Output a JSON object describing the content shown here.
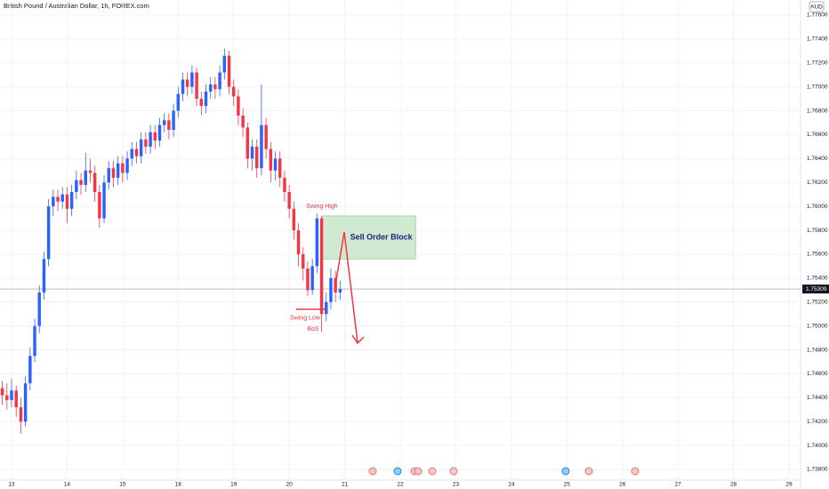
{
  "chart_data": {
    "type": "candlestick",
    "title": "British Pound / Australian Dollar, 1h, FOREX.com",
    "currency": "AUD",
    "up_color": "#2962ff",
    "down_color": "#f23645",
    "open": [
      1.7448,
      1.7442,
      1.7438,
      1.7446,
      1.7432,
      1.742,
      1.7452,
      1.7475,
      1.75,
      1.7528,
      1.7556,
      1.76,
      1.7608,
      1.7604,
      1.761,
      1.7598,
      1.7612,
      1.7622,
      1.7618,
      1.763,
      1.7628,
      1.7612,
      1.759,
      1.762,
      1.7632,
      1.7624,
      1.7636,
      1.7628,
      1.764,
      1.7648,
      1.7642,
      1.7656,
      1.765,
      1.7662,
      1.7655,
      1.7668,
      1.7672,
      1.7664,
      1.768,
      1.7694,
      1.7706,
      1.77,
      1.7712,
      1.769,
      1.7684,
      1.7696,
      1.7702,
      1.7698,
      1.7712,
      1.7726,
      1.77,
      1.7692,
      1.7676,
      1.7666,
      1.764,
      1.765,
      1.7632,
      1.7668,
      1.7648,
      1.763,
      1.764,
      1.7624,
      1.7612,
      1.7598,
      1.758,
      1.756,
      1.7548,
      1.753,
      1.755,
      1.759,
      1.751,
      1.752,
      1.754,
      1.7528
    ],
    "high": [
      1.7454,
      1.7452,
      1.7456,
      1.745,
      1.744,
      1.7458,
      1.7482,
      1.7506,
      1.7534,
      1.7562,
      1.7606,
      1.7614,
      1.7614,
      1.7616,
      1.7616,
      1.7618,
      1.763,
      1.7628,
      1.7645,
      1.764,
      1.7634,
      1.7618,
      1.7626,
      1.7638,
      1.7638,
      1.7642,
      1.7642,
      1.7646,
      1.7654,
      1.7654,
      1.7662,
      1.7662,
      1.7668,
      1.7668,
      1.7674,
      1.7678,
      1.7678,
      1.7686,
      1.77,
      1.7712,
      1.7712,
      1.7718,
      1.7716,
      1.7696,
      1.7702,
      1.7708,
      1.7708,
      1.7718,
      1.7732,
      1.773,
      1.7706,
      1.7698,
      1.7682,
      1.767,
      1.7656,
      1.7656,
      1.7702,
      1.7674,
      1.7654,
      1.7646,
      1.7646,
      1.763,
      1.7618,
      1.7604,
      1.7586,
      1.7566,
      1.7554,
      1.7556,
      1.7594,
      1.7592,
      1.7528,
      1.7548,
      1.7546,
      1.7538
    ],
    "low": [
      1.7434,
      1.743,
      1.7432,
      1.7424,
      1.741,
      1.7416,
      1.7446,
      1.747,
      1.7494,
      1.7522,
      1.755,
      1.7592,
      1.7596,
      1.7598,
      1.7586,
      1.7592,
      1.7606,
      1.761,
      1.7612,
      1.762,
      1.7604,
      1.7582,
      1.7586,
      1.7614,
      1.7616,
      1.7618,
      1.762,
      1.7622,
      1.7634,
      1.7636,
      1.7636,
      1.7644,
      1.7644,
      1.7648,
      1.765,
      1.7662,
      1.7656,
      1.7658,
      1.7674,
      1.7688,
      1.7692,
      1.7694,
      1.7684,
      1.7676,
      1.7678,
      1.769,
      1.769,
      1.7692,
      1.7706,
      1.7694,
      1.7684,
      1.7668,
      1.7658,
      1.7632,
      1.763,
      1.7624,
      1.7626,
      1.764,
      1.762,
      1.7622,
      1.7616,
      1.7604,
      1.759,
      1.7572,
      1.755,
      1.7538,
      1.7525,
      1.7526,
      1.7544,
      1.7495,
      1.7504,
      1.7514,
      1.752,
      1.7522
    ],
    "close": [
      1.7442,
      1.7438,
      1.7446,
      1.7432,
      1.742,
      1.7452,
      1.7475,
      1.75,
      1.7528,
      1.7556,
      1.76,
      1.7608,
      1.7604,
      1.761,
      1.7598,
      1.7612,
      1.7622,
      1.7618,
      1.763,
      1.7628,
      1.7612,
      1.759,
      1.762,
      1.7632,
      1.7624,
      1.7636,
      1.7628,
      1.764,
      1.7648,
      1.7642,
      1.7656,
      1.765,
      1.7662,
      1.7655,
      1.7668,
      1.7672,
      1.7664,
      1.768,
      1.7694,
      1.7706,
      1.77,
      1.7712,
      1.769,
      1.7684,
      1.7696,
      1.7702,
      1.7698,
      1.7712,
      1.7726,
      1.77,
      1.7692,
      1.7676,
      1.7666,
      1.764,
      1.765,
      1.7632,
      1.7668,
      1.7648,
      1.763,
      1.764,
      1.7624,
      1.7612,
      1.7598,
      1.758,
      1.756,
      1.7548,
      1.753,
      1.755,
      1.759,
      1.751,
      1.752,
      1.754,
      1.7528,
      1.75309
    ],
    "xlim": [
      0,
      173
    ],
    "xticks": [
      {
        "value": 2.5,
        "label": "13"
      },
      {
        "value": 14.5,
        "label": "14"
      },
      {
        "value": 26.5,
        "label": "15"
      },
      {
        "value": 38.5,
        "label": "18"
      },
      {
        "value": 50.5,
        "label": "19"
      },
      {
        "value": 62.5,
        "label": "20"
      },
      {
        "value": 74.5,
        "label": "21"
      },
      {
        "value": 86.5,
        "label": "22"
      },
      {
        "value": 98.5,
        "label": "23"
      },
      {
        "value": 110.5,
        "label": "24"
      },
      {
        "value": 122.5,
        "label": "25"
      },
      {
        "value": 134.5,
        "label": "26"
      },
      {
        "value": 146.5,
        "label": "27"
      },
      {
        "value": 158.5,
        "label": "28"
      },
      {
        "value": 170.5,
        "label": "29"
      }
    ],
    "ylim": [
      1.73711,
      1.77726
    ],
    "yticks": [
      {
        "value": 1.738,
        "label": "1.73800"
      },
      {
        "value": 1.74,
        "label": "1.74000"
      },
      {
        "value": 1.742,
        "label": "1.74200"
      },
      {
        "value": 1.744,
        "label": "1.74400"
      },
      {
        "value": 1.746,
        "label": "1.74600"
      },
      {
        "value": 1.748,
        "label": "1.74800"
      },
      {
        "value": 1.75,
        "label": "1.75000"
      },
      {
        "value": 1.752,
        "label": "1.75200"
      },
      {
        "value": 1.754,
        "label": "1.75400"
      },
      {
        "value": 1.756,
        "label": "1.75600"
      },
      {
        "value": 1.758,
        "label": "1.75800"
      },
      {
        "value": 1.76,
        "label": "1.76000"
      },
      {
        "value": 1.762,
        "label": "1.76200"
      },
      {
        "value": 1.764,
        "label": "1.76400"
      },
      {
        "value": 1.766,
        "label": "1.76600"
      },
      {
        "value": 1.768,
        "label": "1.76800"
      },
      {
        "value": 1.77,
        "label": "1.77000"
      },
      {
        "value": 1.772,
        "label": "1.77200"
      },
      {
        "value": 1.774,
        "label": "1.77400"
      },
      {
        "value": 1.776,
        "label": "1.77600"
      }
    ],
    "zone": {
      "label": "Sell Order Block",
      "low": 1.7556,
      "high": 1.7592,
      "x_start": 69.6,
      "x_end": 89.8,
      "color": "#c8e6c9"
    },
    "swing_low": {
      "label": "Swing Low",
      "level": 1.7514,
      "x_start": 64,
      "x_end": 70.2
    },
    "annotations": [
      "Swing High",
      "BoS"
    ]
  }
}
